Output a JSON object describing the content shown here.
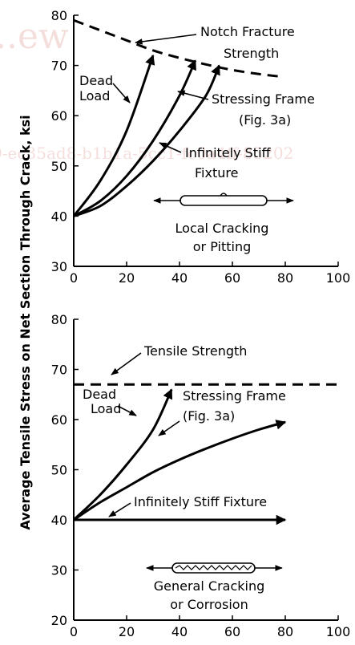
{
  "ylabel": "Average Tensile Stress on Net Section Through Crack, ksi",
  "watermark": {
    "top": "...ew",
    "mid": "9-ec35ad8-b1b1a-5cc1-fc0a4ff-85202"
  },
  "chart_data": [
    {
      "type": "line",
      "xlim": [
        0,
        100
      ],
      "ylim": [
        30,
        80
      ],
      "xticks": [
        "0",
        "20",
        "40",
        "60",
        "80",
        "100"
      ],
      "yticks": [
        "30",
        "40",
        "50",
        "60",
        "70",
        "80"
      ],
      "grid": false,
      "series": [
        {
          "name": "Notch Fracture Strength",
          "style": "dashed",
          "x": [
            0,
            10,
            20,
            30,
            40,
            50,
            60,
            70,
            78
          ],
          "y": [
            79,
            77,
            75,
            73,
            71.5,
            70.2,
            69.1,
            68.3,
            67.8
          ]
        },
        {
          "name": "Dead Load",
          "style": "arrow",
          "x": [
            0,
            10,
            20,
            30
          ],
          "y": [
            40,
            47,
            57,
            72
          ]
        },
        {
          "name": "Stressing Frame (Fig. 3a)",
          "style": "arrow",
          "x": [
            0,
            10,
            20,
            30,
            40,
            46
          ],
          "y": [
            40,
            43,
            48,
            55,
            64,
            71
          ]
        },
        {
          "name": "Infinitely Stiff Fixture",
          "style": "arrow",
          "x": [
            0,
            10,
            20,
            30,
            40,
            50,
            55
          ],
          "y": [
            40,
            42,
            46,
            51,
            57,
            64,
            70
          ]
        }
      ],
      "annotations": [
        {
          "id": "notch",
          "lines": [
            "Notch Fracture",
            "Strength"
          ]
        },
        {
          "id": "dead",
          "lines": [
            "Dead",
            "Load"
          ]
        },
        {
          "id": "frame",
          "lines": [
            "Stressing Frame",
            "(Fig. 3a)"
          ]
        },
        {
          "id": "stiff",
          "lines": [
            "Infinitely Stiff",
            "Fixture"
          ]
        },
        {
          "id": "specimen",
          "lines": [
            "Local Cracking",
            "or Pitting"
          ]
        }
      ]
    },
    {
      "type": "line",
      "xlim": [
        0,
        100
      ],
      "ylim": [
        20,
        80
      ],
      "xticks": [
        "0",
        "20",
        "40",
        "60",
        "80",
        "100"
      ],
      "yticks": [
        "20",
        "30",
        "40",
        "50",
        "60",
        "70",
        "80"
      ],
      "grid": false,
      "series": [
        {
          "name": "Tensile Strength",
          "style": "dashed",
          "x": [
            0,
            100
          ],
          "y": [
            67,
            67
          ]
        },
        {
          "name": "Dead Load",
          "style": "arrow",
          "x": [
            0,
            10,
            20,
            30,
            37
          ],
          "y": [
            40,
            45,
            51,
            58,
            66
          ]
        },
        {
          "name": "Stressing Frame (Fig. 3a)",
          "style": "arrow",
          "x": [
            0,
            10,
            20,
            30,
            40,
            50,
            60,
            70,
            80
          ],
          "y": [
            40,
            43.5,
            46.5,
            49.5,
            52,
            54.2,
            56.2,
            58,
            59.5
          ]
        },
        {
          "name": "Infinitely Stiff Fixture",
          "style": "arrow",
          "x": [
            0,
            80
          ],
          "y": [
            40,
            40
          ]
        }
      ],
      "annotations": [
        {
          "id": "tensile",
          "lines": [
            "Tensile Strength"
          ]
        },
        {
          "id": "dead",
          "lines": [
            "Dead",
            "Load"
          ]
        },
        {
          "id": "frame",
          "lines": [
            "Stressing Frame",
            "(Fig. 3a)"
          ]
        },
        {
          "id": "stiff",
          "lines": [
            "Infinitely Stiff Fixture"
          ]
        },
        {
          "id": "specimen",
          "lines": [
            "General Cracking",
            "or Corrosion"
          ]
        }
      ]
    }
  ]
}
